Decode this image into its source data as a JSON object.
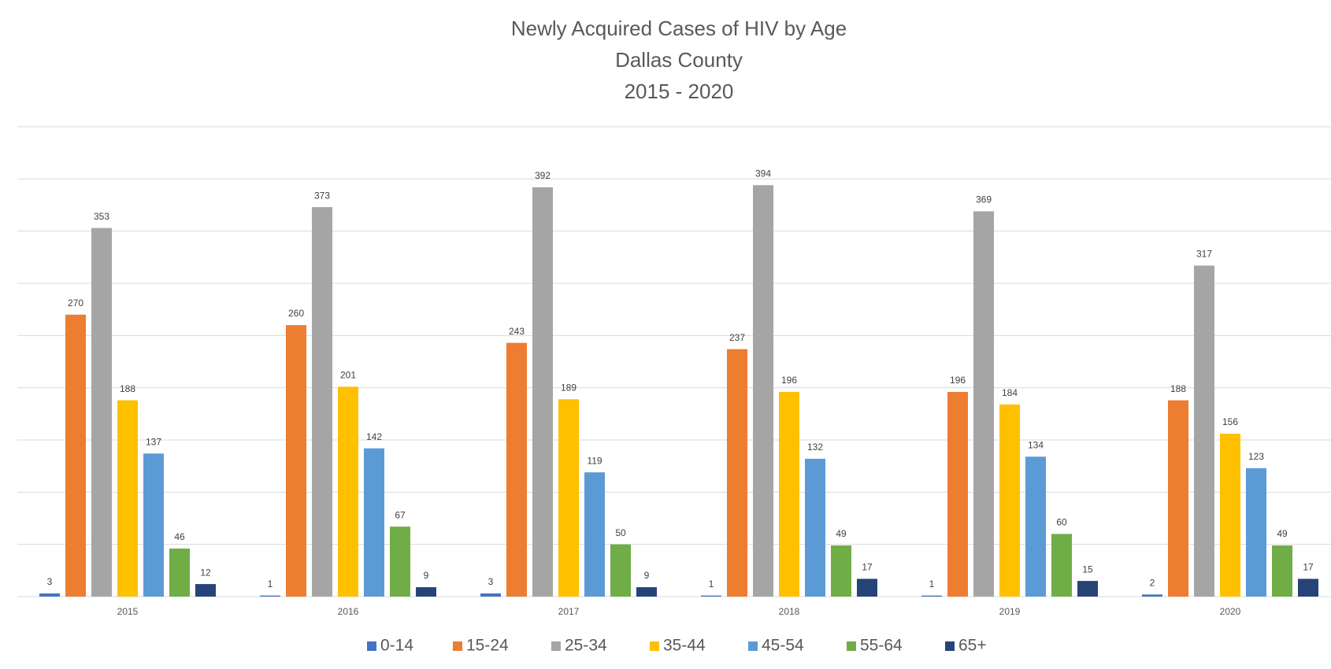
{
  "chart_data": {
    "type": "bar",
    "title": "Newly Acquired Cases of HIV by Age",
    "subtitle": [
      "Dallas County",
      "2015 - 2020"
    ],
    "categories": [
      "2015",
      "2016",
      "2017",
      "2018",
      "2019",
      "2020"
    ],
    "series": [
      {
        "name": "0-14",
        "color": "#4472c4",
        "values": [
          3,
          1,
          3,
          1,
          1,
          2
        ]
      },
      {
        "name": "15-24",
        "color": "#ed7d31",
        "values": [
          270,
          260,
          243,
          237,
          196,
          188
        ]
      },
      {
        "name": "25-34",
        "color": "#a5a5a5",
        "values": [
          353,
          373,
          392,
          394,
          369,
          317
        ]
      },
      {
        "name": "35-44",
        "color": "#ffc000",
        "values": [
          188,
          201,
          189,
          196,
          184,
          156
        ]
      },
      {
        "name": "45-54",
        "color": "#5b9bd5",
        "values": [
          137,
          142,
          119,
          132,
          134,
          123
        ]
      },
      {
        "name": "55-64",
        "color": "#70ad47",
        "values": [
          46,
          67,
          50,
          49,
          60,
          49
        ]
      },
      {
        "name": "65+",
        "color": "#264478",
        "values": [
          12,
          9,
          9,
          17,
          15,
          17
        ]
      }
    ],
    "ylim": [
      0,
      450
    ],
    "yticks": [
      0,
      50,
      100,
      150,
      200,
      250,
      300,
      350,
      400,
      450
    ],
    "grid": true,
    "legend": "bottom"
  }
}
